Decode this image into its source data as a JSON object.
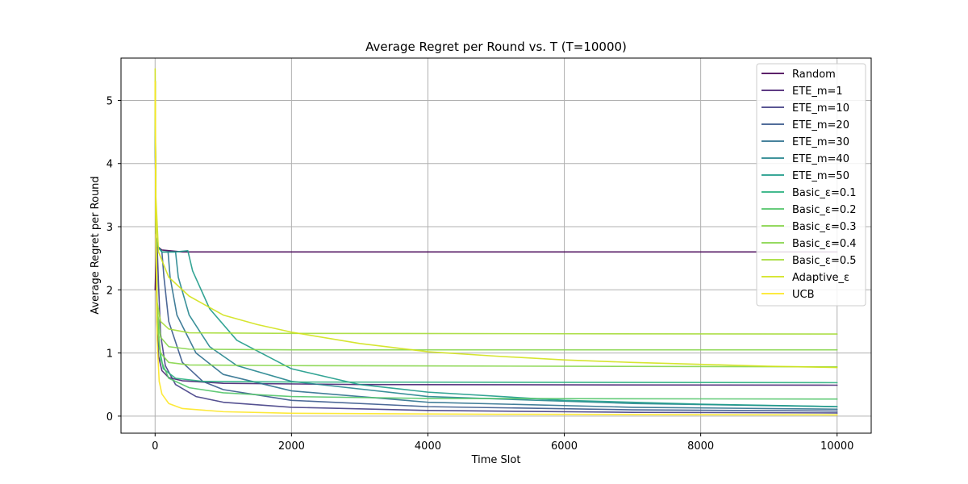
{
  "chart_data": {
    "type": "line",
    "title": "Average Regret per Round vs. T (T=10000)",
    "xlabel": "Time Slot",
    "ylabel": "Average Regret per Round",
    "xlim": [
      -500,
      10500
    ],
    "ylim": [
      -0.27,
      5.67
    ],
    "x_ticks": [
      0,
      2000,
      4000,
      6000,
      8000,
      10000
    ],
    "y_ticks": [
      0,
      1,
      2,
      3,
      4,
      5
    ],
    "grid": true,
    "legend_position": "top-right",
    "series": [
      {
        "name": "Random",
        "color": "#440154",
        "points": [
          [
            1,
            2.0
          ],
          [
            20,
            2.7
          ],
          [
            100,
            2.63
          ],
          [
            400,
            2.6
          ],
          [
            1000,
            2.6
          ],
          [
            3000,
            2.6
          ],
          [
            6000,
            2.6
          ],
          [
            10000,
            2.6
          ]
        ]
      },
      {
        "name": "ETE_m=1",
        "color": "#482173",
        "points": [
          [
            1,
            5.3
          ],
          [
            10,
            3.0
          ],
          [
            25,
            1.5
          ],
          [
            50,
            0.95
          ],
          [
            100,
            0.72
          ],
          [
            200,
            0.61
          ],
          [
            400,
            0.56
          ],
          [
            1000,
            0.52
          ],
          [
            3000,
            0.5
          ],
          [
            10000,
            0.49
          ]
        ]
      },
      {
        "name": "ETE_m=10",
        "color": "#433e85",
        "points": [
          [
            1,
            5.3
          ],
          [
            10,
            2.9
          ],
          [
            30,
            2.7
          ],
          [
            50,
            2.1
          ],
          [
            80,
            1.3
          ],
          [
            150,
            0.8
          ],
          [
            300,
            0.5
          ],
          [
            600,
            0.31
          ],
          [
            1000,
            0.22
          ],
          [
            2000,
            0.14
          ],
          [
            4000,
            0.09
          ],
          [
            7000,
            0.06
          ],
          [
            10000,
            0.05
          ]
        ]
      },
      {
        "name": "ETE_m=20",
        "color": "#38588c",
        "points": [
          [
            1,
            5.3
          ],
          [
            10,
            2.9
          ],
          [
            30,
            2.7
          ],
          [
            100,
            2.6
          ],
          [
            130,
            2.2
          ],
          [
            200,
            1.5
          ],
          [
            400,
            0.85
          ],
          [
            700,
            0.55
          ],
          [
            1000,
            0.42
          ],
          [
            2000,
            0.25
          ],
          [
            4000,
            0.15
          ],
          [
            7000,
            0.1
          ],
          [
            10000,
            0.08
          ]
        ]
      },
      {
        "name": "ETE_m=30",
        "color": "#2d708e",
        "points": [
          [
            1,
            5.3
          ],
          [
            10,
            2.9
          ],
          [
            30,
            2.7
          ],
          [
            100,
            2.6
          ],
          [
            190,
            2.6
          ],
          [
            220,
            2.2
          ],
          [
            320,
            1.6
          ],
          [
            600,
            1.0
          ],
          [
            1000,
            0.66
          ],
          [
            2000,
            0.4
          ],
          [
            4000,
            0.22
          ],
          [
            7000,
            0.14
          ],
          [
            10000,
            0.11
          ]
        ]
      },
      {
        "name": "ETE_m=40",
        "color": "#25858e",
        "points": [
          [
            1,
            5.3
          ],
          [
            10,
            2.9
          ],
          [
            30,
            2.7
          ],
          [
            100,
            2.6
          ],
          [
            300,
            2.6
          ],
          [
            340,
            2.2
          ],
          [
            500,
            1.6
          ],
          [
            800,
            1.1
          ],
          [
            1200,
            0.8
          ],
          [
            2000,
            0.55
          ],
          [
            4000,
            0.31
          ],
          [
            7000,
            0.2
          ],
          [
            10000,
            0.15
          ]
        ]
      },
      {
        "name": "ETE_m=50",
        "color": "#1e9b8a",
        "points": [
          [
            1,
            5.3
          ],
          [
            10,
            2.9
          ],
          [
            30,
            2.7
          ],
          [
            100,
            2.6
          ],
          [
            300,
            2.6
          ],
          [
            480,
            2.62
          ],
          [
            550,
            2.3
          ],
          [
            800,
            1.7
          ],
          [
            1200,
            1.2
          ],
          [
            2000,
            0.75
          ],
          [
            3000,
            0.5
          ],
          [
            4000,
            0.38
          ],
          [
            6000,
            0.25
          ],
          [
            8000,
            0.19
          ],
          [
            10000,
            0.15
          ]
        ]
      },
      {
        "name": "Basic_ε=0.1",
        "color": "#2ab07f",
        "points": [
          [
            1,
            5.3
          ],
          [
            10,
            3.2
          ],
          [
            30,
            1.8
          ],
          [
            60,
            1.1
          ],
          [
            120,
            0.75
          ],
          [
            300,
            0.6
          ],
          [
            700,
            0.55
          ],
          [
            2000,
            0.54
          ],
          [
            10000,
            0.53
          ]
        ]
      },
      {
        "name": "Basic_ε=0.2",
        "color": "#52c569",
        "points": [
          [
            1,
            5.3
          ],
          [
            10,
            3.2
          ],
          [
            30,
            1.6
          ],
          [
            80,
            0.9
          ],
          [
            200,
            0.6
          ],
          [
            500,
            0.45
          ],
          [
            1000,
            0.37
          ],
          [
            2000,
            0.31
          ],
          [
            4000,
            0.28
          ],
          [
            10000,
            0.27
          ]
        ]
      },
      {
        "name": "Basic_ε=0.3",
        "color": "#86d549",
        "points": [
          [
            1,
            5.3
          ],
          [
            10,
            3.2
          ],
          [
            30,
            1.5
          ],
          [
            80,
            1.0
          ],
          [
            200,
            0.85
          ],
          [
            500,
            0.81
          ],
          [
            2000,
            0.8
          ],
          [
            10000,
            0.78
          ]
        ]
      },
      {
        "name": "Basic_ε=0.4",
        "color": "#86d549",
        "points": [
          [
            1,
            5.3
          ],
          [
            10,
            3.2
          ],
          [
            30,
            1.7
          ],
          [
            80,
            1.25
          ],
          [
            200,
            1.1
          ],
          [
            500,
            1.06
          ],
          [
            2000,
            1.05
          ],
          [
            10000,
            1.05
          ]
        ]
      },
      {
        "name": "Basic_ε=0.5",
        "color": "#a5db36",
        "points": [
          [
            1,
            5.3
          ],
          [
            10,
            3.2
          ],
          [
            30,
            1.8
          ],
          [
            80,
            1.5
          ],
          [
            200,
            1.38
          ],
          [
            500,
            1.32
          ],
          [
            2000,
            1.31
          ],
          [
            10000,
            1.3
          ]
        ]
      },
      {
        "name": "Adaptive_ε",
        "color": "#d2e21b",
        "points": [
          [
            1,
            5.5
          ],
          [
            10,
            3.5
          ],
          [
            50,
            2.6
          ],
          [
            200,
            2.2
          ],
          [
            500,
            1.9
          ],
          [
            1000,
            1.6
          ],
          [
            1500,
            1.45
          ],
          [
            2000,
            1.33
          ],
          [
            3000,
            1.15
          ],
          [
            4000,
            1.02
          ],
          [
            5000,
            0.95
          ],
          [
            6000,
            0.89
          ],
          [
            7000,
            0.85
          ],
          [
            8000,
            0.82
          ],
          [
            9000,
            0.79
          ],
          [
            10000,
            0.77
          ]
        ]
      },
      {
        "name": "UCB",
        "color": "#fde725",
        "points": [
          [
            1,
            5.3
          ],
          [
            10,
            3.0
          ],
          [
            30,
            1.2
          ],
          [
            60,
            0.55
          ],
          [
            100,
            0.35
          ],
          [
            200,
            0.2
          ],
          [
            400,
            0.12
          ],
          [
            1000,
            0.07
          ],
          [
            2000,
            0.045
          ],
          [
            5000,
            0.03
          ],
          [
            10000,
            0.02
          ]
        ]
      }
    ]
  }
}
